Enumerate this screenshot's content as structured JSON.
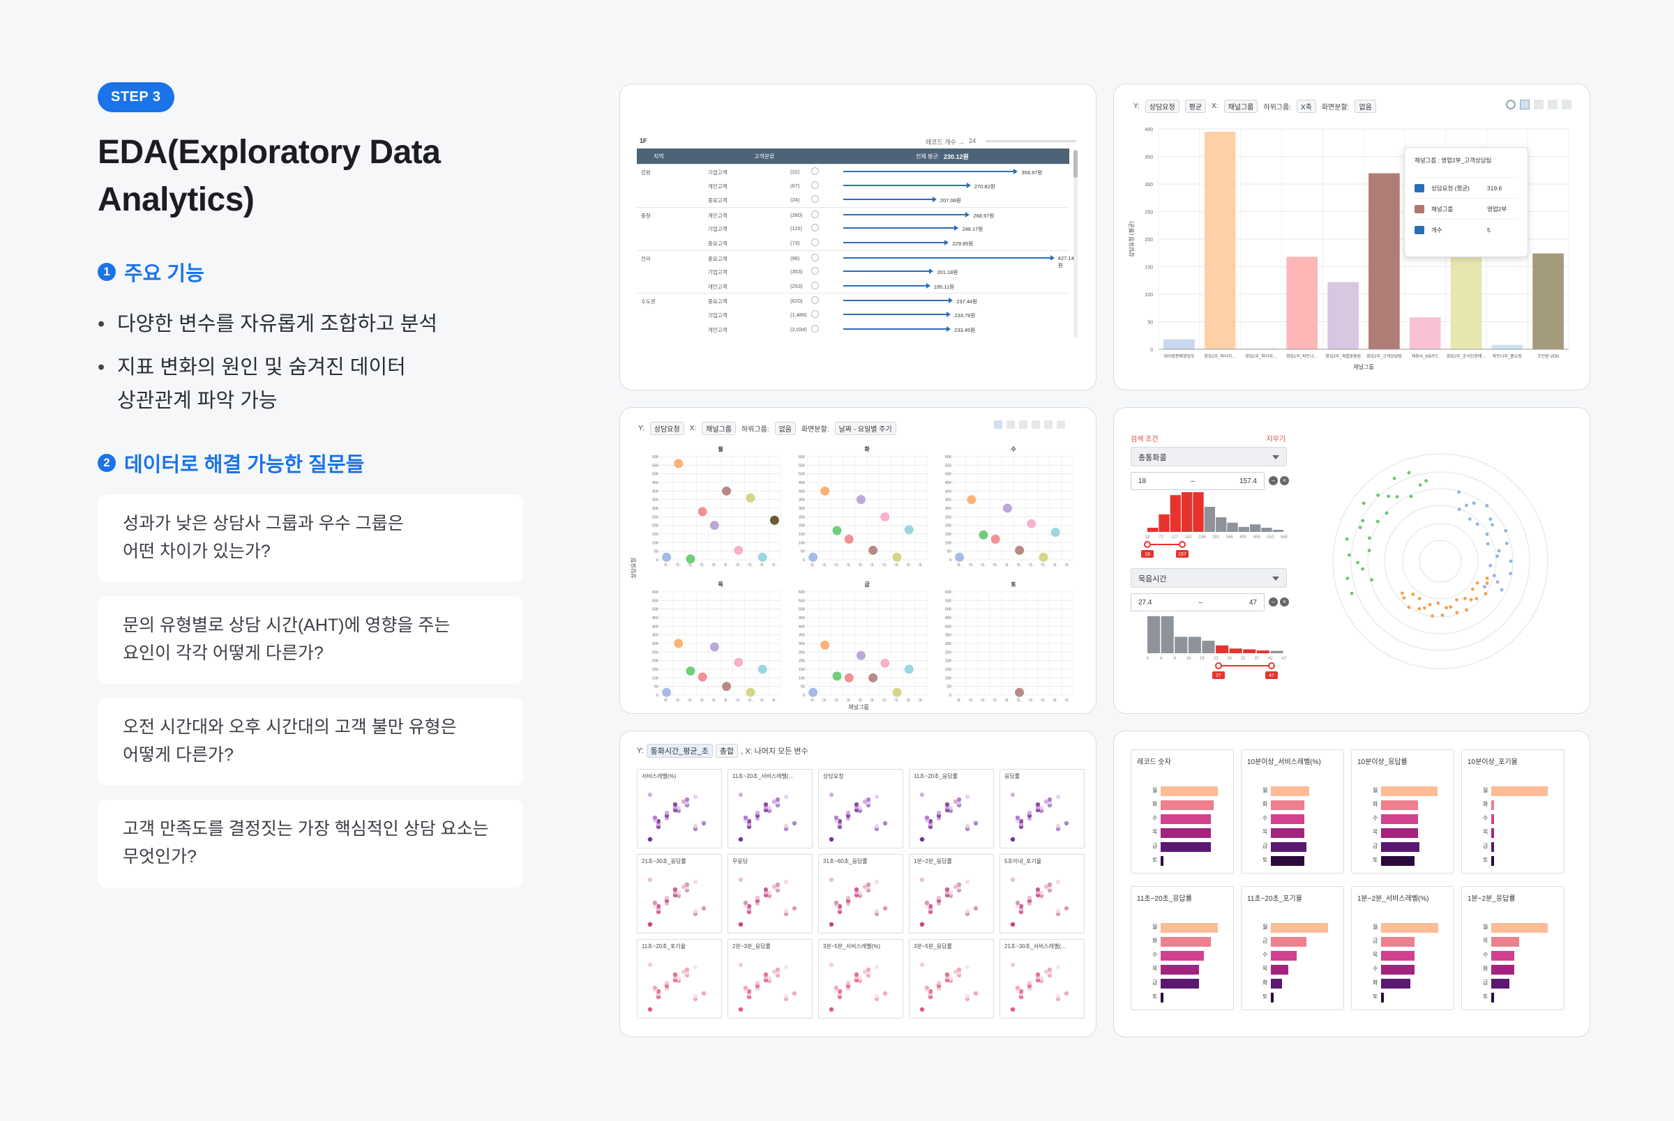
{
  "step_badge": "STEP 3",
  "title_line1": "EDA(Exploratory Data",
  "title_line2": "Analytics)",
  "section1": {
    "number": "1",
    "heading": "주요 기능",
    "bullets": [
      [
        "다양한 변수를 자유롭게 조합하고 분석"
      ],
      [
        "지표 변화의 원인 및 숨겨진 데이터",
        "상관관계 파악 가능"
      ]
    ]
  },
  "section2": {
    "number": "2",
    "heading": "데이터로 해결 가능한 질문들",
    "questions": [
      [
        "성과가 낮은 상담사 그룹과 우수 그룹은",
        "어떤 차이가 있는가?"
      ],
      [
        "문의 유형별로 상담 시간(AHT)에 영향을 주는",
        "요인이 각각 어떻게 다른가?"
      ],
      [
        "오전 시간대와 오후 시간대의 고객 불만 유형은",
        "어떻게 다른가?"
      ],
      [
        "고객 만족도를 결정짓는 가장 핵심적인 상담 요소는",
        "무엇인가?"
      ]
    ]
  },
  "panel1": {
    "floor_label": "1F",
    "record_label": "레코드 개수 →",
    "record_value": "24",
    "headers": {
      "region": "지역",
      "segment": "고객분류",
      "total": "전체 평균:",
      "total_value": "230.12원"
    },
    "rows": [
      {
        "region": "강원",
        "segment": "기업고객",
        "count": "(22)",
        "value": 358.97,
        "label": "358.97원"
      },
      {
        "region": "",
        "segment": "개인고객",
        "count": "(67)",
        "value": 270.82,
        "label": "270.82원"
      },
      {
        "region": "",
        "segment": "중요고객",
        "count": "(24)",
        "value": 207.08,
        "label": "207.08원"
      },
      {
        "region": "충청",
        "segment": "개인고객",
        "count": "(260)",
        "value": 268.97,
        "label": "268.97원"
      },
      {
        "region": "",
        "segment": "기업고객",
        "count": "(115)",
        "value": 248.17,
        "label": "248.17원"
      },
      {
        "region": "",
        "segment": "중요고객",
        "count": "(73)",
        "value": 229.85,
        "label": "229.85원"
      },
      {
        "region": "전라",
        "segment": "중요고객",
        "count": "(96)",
        "value": 427.14,
        "label": "427.14원"
      },
      {
        "region": "",
        "segment": "기업고객",
        "count": "(353)",
        "value": 201.18,
        "label": "201.18원"
      },
      {
        "region": "",
        "segment": "개인고객",
        "count": "(253)",
        "value": 195.11,
        "label": "195.11원"
      },
      {
        "region": "수도권",
        "segment": "중요고객",
        "count": "(620)",
        "value": 237.44,
        "label": "237.44원"
      },
      {
        "region": "",
        "segment": "기업고객",
        "count": "(1,486)",
        "value": 233.79,
        "label": "233.79원"
      },
      {
        "region": "",
        "segment": "개인고객",
        "count": "(2,034)",
        "value": 233.45,
        "label": "233.45원"
      }
    ]
  },
  "panel2": {
    "controls": {
      "y": "Y:",
      "y_chip1": "상담요청",
      "y_chip2": "평균",
      "x": "X:",
      "x_chip": "채널그룹",
      "sub": "하위그룹:",
      "sub_chip": "X축",
      "split": "화면분할:",
      "split_chip": "없음"
    },
    "tooltip": {
      "title": "채널그룹 : 영업2부_고객상담팀",
      "rows": [
        [
          "상담요청 (평균)",
          "319.6"
        ],
        [
          "채널그룹",
          "영업2부·"
        ],
        [
          "개수",
          "5"
        ]
      ]
    },
    "x_title": "채널그룹",
    "y_title": "상담요청 (평균)",
    "colors": {
      "ic1": "#2b6fb3",
      "ic2": "#b6746f",
      "ic3": "#2b6fb3"
    }
  },
  "panel3": {
    "controls": {
      "y": "Y:",
      "y_chip": "상담요청",
      "x": "X:",
      "x_chip": "채널그룹",
      "sub": "하위그룹:",
      "sub_chip": "없음",
      "split": "화면분할:",
      "split_chip": "날짜 - 요일별 주기"
    },
    "facets": [
      "월",
      "화",
      "수",
      "목",
      "금",
      "토"
    ],
    "x_title": "채널그룹",
    "y_title": "상담요청"
  },
  "panel4": {
    "filter_title": "검색 조건",
    "clear": "지우기",
    "filter1": {
      "field": "총통화콜",
      "min": "18",
      "max": "157.4",
      "dash": "–",
      "marker_min": "18",
      "marker_max": "157"
    },
    "filter2": {
      "field": "묵음시간",
      "min": "27.4",
      "max": "47",
      "dash": "–",
      "marker_min": "27",
      "marker_max": "47"
    },
    "hist1_ticks": [
      "18",
      "72",
      "127",
      "182",
      "236",
      "291",
      "346",
      "400",
      "455",
      "510",
      "565"
    ],
    "hist2_ticks": [
      "0",
      "4",
      "9",
      "14",
      "18",
      "23",
      "28",
      "32",
      "37",
      "42",
      "47"
    ]
  },
  "panel5": {
    "control_prefix": "Y:",
    "y_chip": "통화시간_평균_초",
    "agg_chip": "총합",
    "control_suffix": ", X: 나머지 모든 변수",
    "cells": [
      "서비스레벨(%)",
      "11초~20초_서비스레벨(…",
      "상담요청",
      "11초~20초_응답률",
      "응답률",
      "21초~30초_응답률",
      "무응답",
      "31초~60초_응답률",
      "1분~2분_응답률",
      "5초이내_포기율",
      "11초~20초_포기율",
      "2분~3분_응답률",
      "3분~5분_서비스레벨(%)",
      "3분~5분_응답률",
      "21초~30초_서비스레벨(…"
    ]
  },
  "panel6": {
    "cards": [
      {
        "title": "레코드 숫자",
        "labels": [
          "월",
          "화",
          "수",
          "목",
          "금",
          "토"
        ],
        "values": [
          0.93,
          0.86,
          0.82,
          0.82,
          0.82,
          0.04
        ]
      },
      {
        "title": "10분이상_서비스레벨(%)",
        "labels": [
          "월",
          "화",
          "수",
          "목",
          "금",
          "토"
        ],
        "values": [
          0.62,
          0.55,
          0.55,
          0.55,
          0.58,
          0.55
        ]
      },
      {
        "title": "10분이상_응답률",
        "labels": [
          "월",
          "화",
          "수",
          "목",
          "금",
          "토"
        ],
        "values": [
          0.92,
          0.6,
          0.6,
          0.6,
          0.62,
          0.55
        ]
      },
      {
        "title": "10분이상_포기율",
        "labels": [
          "월",
          "화",
          "수",
          "목",
          "금",
          "토"
        ],
        "values": [
          0.92,
          0.04,
          0.04,
          0.04,
          0.04,
          0.04
        ]
      },
      {
        "title": "11초~20초_응답률",
        "labels": [
          "월",
          "화",
          "수",
          "목",
          "금",
          "토"
        ],
        "values": [
          0.93,
          0.82,
          0.7,
          0.62,
          0.62,
          0.04
        ]
      },
      {
        "title": "11초~20초_포기율",
        "labels": [
          "월",
          "금",
          "수",
          "목",
          "화",
          "토"
        ],
        "values": [
          0.93,
          0.58,
          0.42,
          0.28,
          0.18,
          0.04
        ]
      },
      {
        "title": "1분~2분_서비스레벨(%)",
        "labels": [
          "월",
          "금",
          "목",
          "수",
          "화",
          "토"
        ],
        "values": [
          0.93,
          0.55,
          0.55,
          0.55,
          0.48,
          0.04
        ]
      },
      {
        "title": "1분~2분_응답률",
        "labels": [
          "월",
          "목",
          "수",
          "화",
          "금",
          "토"
        ],
        "values": [
          0.92,
          0.45,
          0.38,
          0.38,
          0.3,
          0.04
        ]
      }
    ]
  },
  "chart_data": [
    {
      "type": "bar",
      "categories": [
        "대리점판매영업부",
        "영업1부_파이지…",
        "영업1부_파이지…",
        "영업1부_파트너…",
        "영업2부_개별맞춤팀",
        "영업2부_고객상담팀",
        "제휴사_KB카드",
        "영업2부_공식인증매…",
        "파트너부_홈쇼핑",
        "조인원 VDN"
      ],
      "values": [
        18,
        395,
        2,
        168,
        122,
        319.6,
        58,
        200,
        8,
        174
      ],
      "xlabel": "채널그룹",
      "ylabel": "상담요청 (평균)",
      "ylim": [
        0,
        400
      ],
      "colors": [
        "#c9d7ef",
        "#fdd0a8",
        "#e8e8e8",
        "#ffb6b6",
        "#d9c6e0",
        "#b07d76",
        "#f9c2d4",
        "#e8e6b0",
        "#cbe3ee",
        "#a49a7c"
      ]
    },
    {
      "type": "scatter",
      "title": "",
      "xlabel": "채널그룹",
      "ylabel": "상담요청",
      "ylim": [
        0,
        600
      ],
      "facets": [
        "월",
        "화",
        "수",
        "목",
        "금",
        "토"
      ],
      "series": [
        {
          "facet": "월",
          "points": [
            [
              1,
              15
            ],
            [
              2,
              560
            ],
            [
              3,
              5
            ],
            [
              4,
              280
            ],
            [
              5,
              200
            ],
            [
              6,
              400
            ],
            [
              7,
              55
            ],
            [
              8,
              360
            ],
            [
              9,
              15
            ],
            [
              10,
              230
            ]
          ]
        },
        {
          "facet": "화",
          "points": [
            [
              1,
              15
            ],
            [
              2,
              400
            ],
            [
              3,
              170
            ],
            [
              4,
              120
            ],
            [
              5,
              350
            ],
            [
              6,
              55
            ],
            [
              7,
              250
            ],
            [
              8,
              15
            ],
            [
              9,
              175
            ]
          ]
        },
        {
          "facet": "수",
          "points": [
            [
              1,
              15
            ],
            [
              2,
              350
            ],
            [
              3,
              145
            ],
            [
              4,
              120
            ],
            [
              5,
              300
            ],
            [
              6,
              55
            ],
            [
              7,
              210
            ],
            [
              8,
              15
            ],
            [
              9,
              160
            ]
          ]
        },
        {
          "facet": "목",
          "points": [
            [
              1,
              15
            ],
            [
              2,
              300
            ],
            [
              3,
              140
            ],
            [
              4,
              105
            ],
            [
              5,
              280
            ],
            [
              6,
              50
            ],
            [
              7,
              190
            ],
            [
              8,
              15
            ],
            [
              9,
              150
            ]
          ]
        },
        {
          "facet": "금",
          "points": [
            [
              1,
              15
            ],
            [
              2,
              290
            ],
            [
              3,
              110
            ],
            [
              4,
              100
            ],
            [
              5,
              230
            ],
            [
              6,
              100
            ],
            [
              7,
              185
            ],
            [
              8,
              15
            ],
            [
              9,
              150
            ]
          ]
        },
        {
          "facet": "토",
          "points": [
            [
              6,
              15
            ]
          ]
        }
      ]
    },
    {
      "type": "bar",
      "title": "",
      "categories": [
        "월",
        "화",
        "수",
        "목",
        "금",
        "토"
      ],
      "series": [
        {
          "values": [
            0.93,
            0.86,
            0.82,
            0.82,
            0.82,
            0.04
          ]
        }
      ]
    }
  ]
}
